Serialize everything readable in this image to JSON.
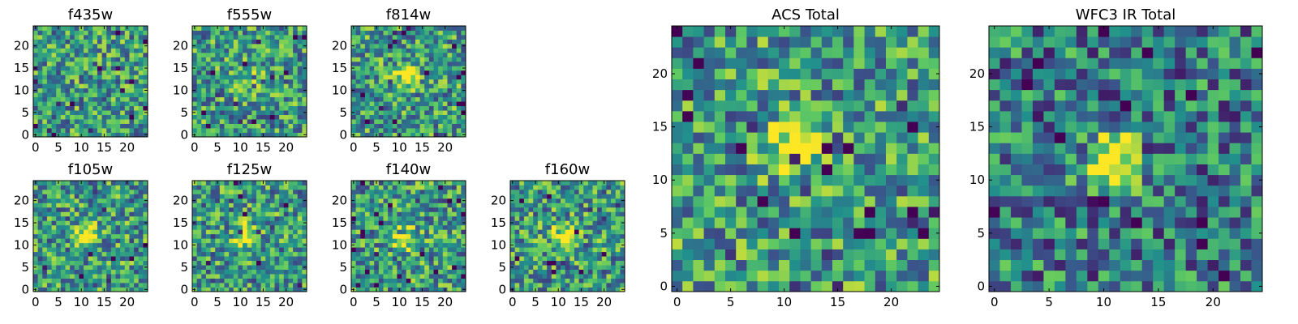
{
  "figure": {
    "colormap": "viridis",
    "colors": [
      "#440154",
      "#3b528b",
      "#21918c",
      "#5ec962",
      "#fde725"
    ],
    "frame_color": "#000000"
  },
  "chart_data": [
    {
      "type": "heatmap",
      "title": "f435w",
      "grid": false,
      "size": [
        25,
        25
      ],
      "xticks": [
        "0",
        "5",
        "10",
        "15",
        "20"
      ],
      "yticks": [
        "0",
        "5",
        "10",
        "15",
        "20"
      ],
      "xlim": [
        -0.5,
        24.5
      ],
      "ylim": [
        -0.5,
        24.5
      ],
      "source_center": null,
      "contrast": 0.3
    },
    {
      "type": "heatmap",
      "title": "f555w",
      "grid": false,
      "size": [
        25,
        25
      ],
      "xticks": [
        "0",
        "5",
        "10",
        "15",
        "20"
      ],
      "yticks": [
        "0",
        "5",
        "10",
        "15",
        "20"
      ],
      "xlim": [
        -0.5,
        24.5
      ],
      "ylim": [
        -0.5,
        24.5
      ],
      "source_center": [
        12,
        13
      ],
      "contrast": 0.2
    },
    {
      "type": "heatmap",
      "title": "f814w",
      "grid": false,
      "size": [
        25,
        25
      ],
      "xticks": [
        "0",
        "5",
        "10",
        "15",
        "20"
      ],
      "yticks": [
        "0",
        "5",
        "10",
        "15",
        "20"
      ],
      "xlim": [
        -0.5,
        24.5
      ],
      "ylim": [
        -0.5,
        24.5
      ],
      "source_center": [
        11,
        13
      ],
      "contrast": 0.55
    },
    {
      "type": "heatmap",
      "title": "f105w",
      "grid": false,
      "size": [
        25,
        25
      ],
      "xticks": [
        "0",
        "5",
        "10",
        "15",
        "20"
      ],
      "yticks": [
        "0",
        "5",
        "10",
        "15",
        "20"
      ],
      "xlim": [
        -0.5,
        24.5
      ],
      "ylim": [
        -0.5,
        24.5
      ],
      "source_center": [
        11,
        12
      ],
      "contrast": 0.55
    },
    {
      "type": "heatmap",
      "title": "f125w",
      "grid": false,
      "size": [
        25,
        25
      ],
      "xticks": [
        "0",
        "5",
        "10",
        "15",
        "20"
      ],
      "yticks": [
        "0",
        "5",
        "10",
        "15",
        "20"
      ],
      "xlim": [
        -0.5,
        24.5
      ],
      "ylim": [
        -0.5,
        24.5
      ],
      "source_center": [
        11,
        12
      ],
      "contrast": 0.55
    },
    {
      "type": "heatmap",
      "title": "f140w",
      "grid": false,
      "size": [
        25,
        25
      ],
      "xticks": [
        "0",
        "5",
        "10",
        "15",
        "20"
      ],
      "yticks": [
        "0",
        "5",
        "10",
        "15",
        "20"
      ],
      "xlim": [
        -0.5,
        24.5
      ],
      "ylim": [
        -0.5,
        24.5
      ],
      "source_center": [
        11,
        12
      ],
      "contrast": 0.6
    },
    {
      "type": "heatmap",
      "title": "f160w",
      "grid": false,
      "size": [
        25,
        25
      ],
      "xticks": [
        "0",
        "5",
        "10",
        "15",
        "20"
      ],
      "yticks": [
        "0",
        "5",
        "10",
        "15",
        "20"
      ],
      "xlim": [
        -0.5,
        24.5
      ],
      "ylim": [
        -0.5,
        24.5
      ],
      "source_center": [
        11,
        12
      ],
      "contrast": 0.6
    },
    {
      "type": "heatmap",
      "title": "ACS Total",
      "grid": false,
      "size": [
        25,
        25
      ],
      "xticks": [
        "0",
        "5",
        "10",
        "15",
        "20"
      ],
      "yticks": [
        "0",
        "5",
        "10",
        "15",
        "20"
      ],
      "xlim": [
        -0.5,
        24.5
      ],
      "ylim": [
        -0.5,
        24.5
      ],
      "source_center": [
        11,
        13
      ],
      "contrast": 0.45
    },
    {
      "type": "heatmap",
      "title": "WFC3 IR Total",
      "grid": false,
      "size": [
        25,
        25
      ],
      "xticks": [
        "0",
        "5",
        "10",
        "15",
        "20"
      ],
      "yticks": [
        "0",
        "5",
        "10",
        "15",
        "20"
      ],
      "xlim": [
        -0.5,
        24.5
      ],
      "ylim": [
        -0.5,
        24.5
      ],
      "source_center": [
        11,
        12
      ],
      "contrast": 0.75
    }
  ]
}
